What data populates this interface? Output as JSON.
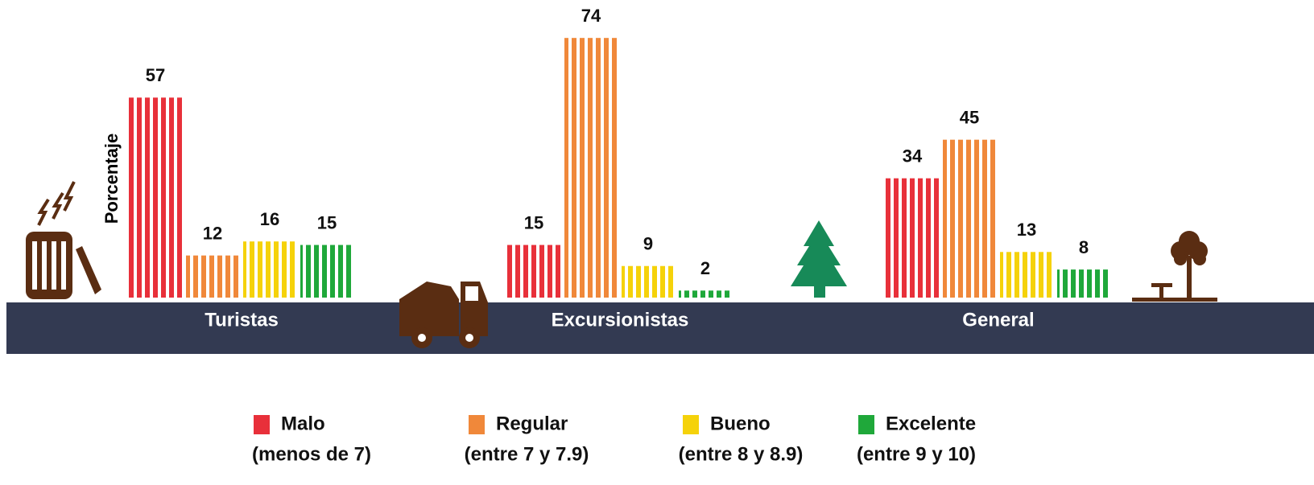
{
  "chart_data": {
    "type": "bar",
    "y_label": "Porcentaje",
    "categories": [
      "Turistas",
      "Excursionistas",
      "General"
    ],
    "series": [
      {
        "name": "Malo",
        "range": "(menos de 7)",
        "color": "#e8303a",
        "values": [
          57,
          15,
          34
        ]
      },
      {
        "name": "Regular",
        "range": "(entre 7 y 7.9)",
        "color": "#f0883a",
        "values": [
          12,
          74,
          45
        ]
      },
      {
        "name": "Bueno",
        "range": "(entre 8 y 8.9)",
        "color": "#f5d20a",
        "values": [
          16,
          9,
          13
        ]
      },
      {
        "name": "Excelente",
        "range": "(entre 9 y 10)",
        "color": "#1fa83a",
        "values": [
          15,
          2,
          8
        ]
      }
    ],
    "ylim": [
      0,
      80
    ]
  }
}
